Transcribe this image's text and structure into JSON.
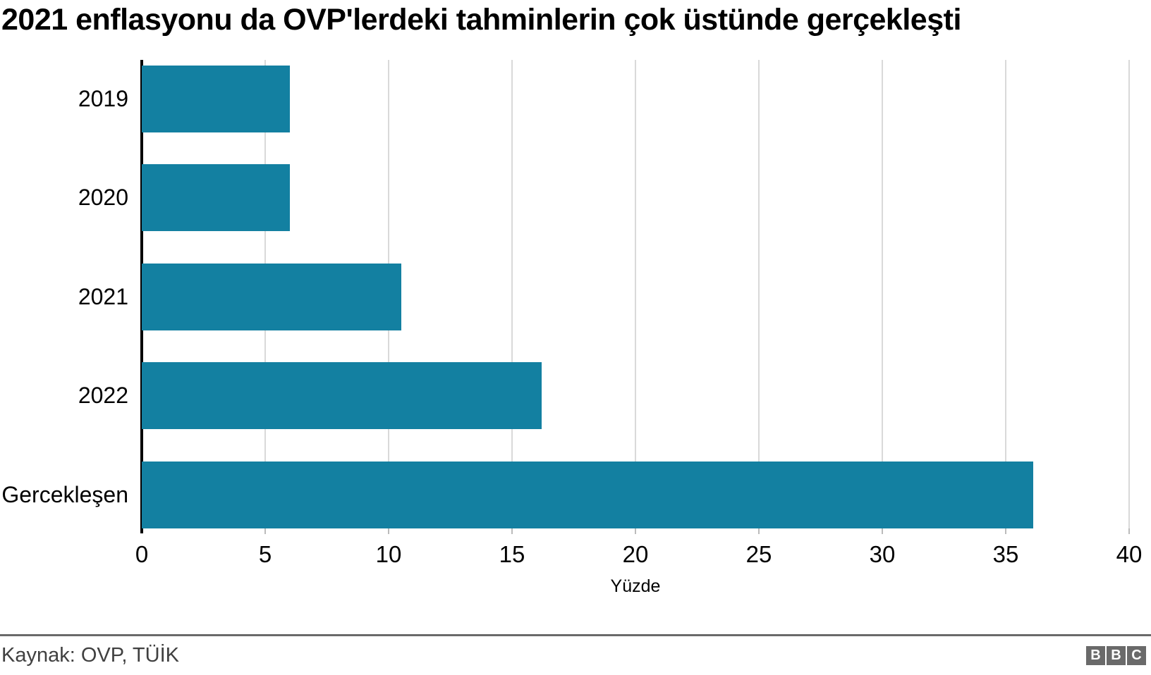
{
  "title": "2021 enflasyonu da OVP'lerdeki tahminlerin çok üstünde gerçekleşti",
  "chart_data": {
    "type": "bar",
    "orientation": "horizontal",
    "title": "2021 enflasyonu da OVP'lerdeki tahminlerin çok üstünde gerçekleşti",
    "categories": [
      "2019",
      "2020",
      "2021",
      "2022",
      "Gercekleşen"
    ],
    "values": [
      6.0,
      6.0,
      10.5,
      16.2,
      36.1
    ],
    "xlabel": "Yüzde",
    "ylabel": "",
    "xlim": [
      0,
      40
    ],
    "xticks": [
      0,
      5,
      10,
      15,
      20,
      25,
      30,
      35,
      40
    ],
    "grid": true,
    "legend": "none",
    "bar_color": "#1380a1"
  },
  "footer": {
    "source": "Kaynak: OVP, TÜİK",
    "logo_letters": [
      "B",
      "B",
      "C"
    ]
  },
  "colors": {
    "bar": "#1380a1",
    "gridline": "#d9d9d9",
    "axis_spine": "#000000",
    "divider": "#6a6a6a",
    "source_text": "#404040",
    "logo_box": "#6a6a6a",
    "logo_letter": "#ffffff"
  }
}
